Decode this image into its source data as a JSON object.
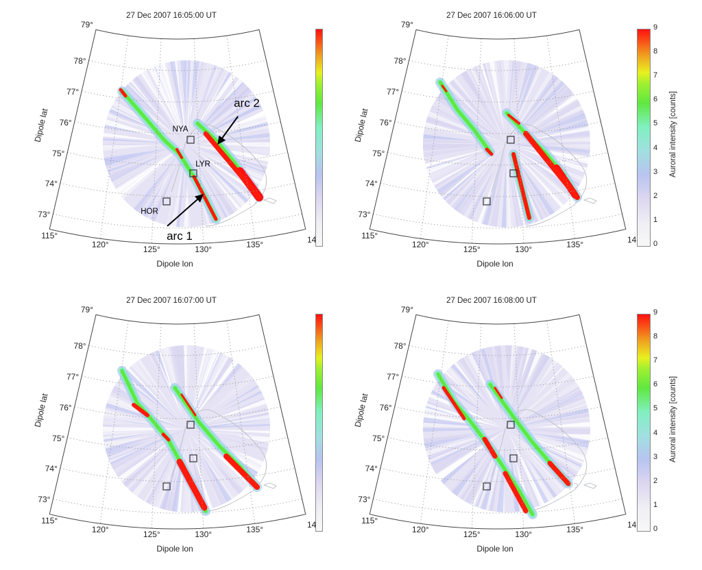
{
  "figure": {
    "panels": [
      {
        "title": "27 Dec 2007 16:05:00 UT",
        "position": "top-left",
        "colorbar_labeled": false,
        "annotations": [
          {
            "text": "arc 2"
          },
          {
            "text": "arc 1"
          }
        ],
        "stations_labeled": true
      },
      {
        "title": "27 Dec 2007 16:06:00 UT",
        "position": "top-right",
        "colorbar_labeled": true,
        "stations_labeled": false
      },
      {
        "title": "27 Dec 2007 16:07:00 UT",
        "position": "bottom-left",
        "colorbar_labeled": false,
        "stations_labeled": false
      },
      {
        "title": "27 Dec 2007 16:08:00 UT",
        "position": "bottom-right",
        "colorbar_labeled": true,
        "stations_labeled": false
      }
    ],
    "xlabel": "Dipole lon",
    "ylabel": "Dipole lat",
    "lat_ticks": [
      "79°",
      "78°",
      "77°",
      "76°",
      "75°",
      "74°",
      "73°"
    ],
    "lon_ticks": [
      "115°",
      "120°",
      "125°",
      "130°",
      "135°"
    ],
    "lon_tick_truncated": "14",
    "stations": [
      {
        "name": "NYA"
      },
      {
        "name": "LYR"
      },
      {
        "name": "HOR"
      }
    ],
    "colorbar": {
      "label": "Auroral intensity [counts]",
      "ticks": [
        "9",
        "8",
        "7",
        "6",
        "5",
        "4",
        "3",
        "2",
        "1",
        "0"
      ],
      "range": [
        0,
        9
      ],
      "colormap": [
        "#f8f8f8",
        "#eeeef4",
        "#ddd6f0",
        "#b8c4f0",
        "#a0e0e0",
        "#80f0c0",
        "#60e840",
        "#e8f020",
        "#f0a020",
        "#ff1010"
      ]
    }
  }
}
